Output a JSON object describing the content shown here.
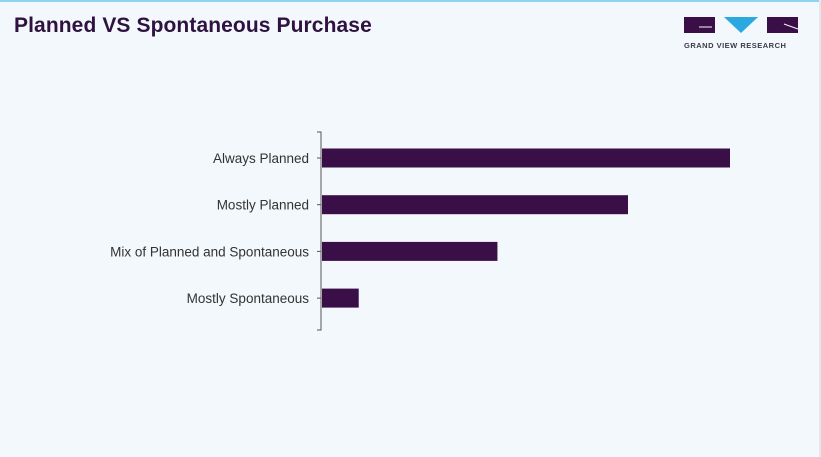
{
  "title": "Planned VS Spontaneous Purchase",
  "logo": {
    "text": "GRAND VIEW RESEARCH"
  },
  "colors": {
    "bar": "#3a0f47",
    "accent": "#29a9e0",
    "title": "#2f1240"
  },
  "chart_data": {
    "type": "bar",
    "orientation": "horizontal",
    "title": "Planned VS Spontaneous Purchase",
    "categories": [
      "Always Planned",
      "Mostly Planned",
      "Mix of Planned and Spontaneous",
      "Mostly Spontaneous"
    ],
    "values": [
      100,
      75,
      43,
      9
    ],
    "xlabel": "",
    "ylabel": "",
    "xlim": [
      0,
      100
    ],
    "grid": false,
    "value_note": "relative scale, no axis values shown"
  }
}
